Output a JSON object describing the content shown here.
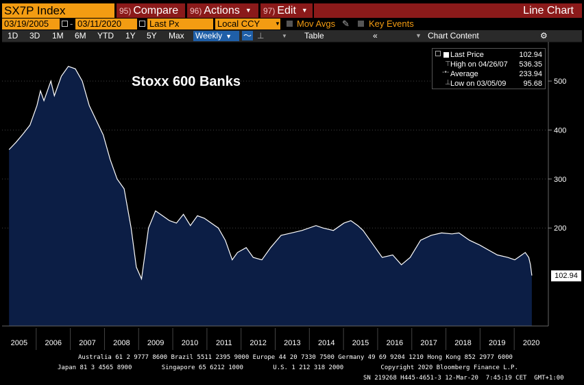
{
  "header": {
    "ticker": "SX7P Index",
    "compare_num": "95)",
    "compare": "Compare",
    "actions_num": "96)",
    "actions": "Actions",
    "edit_num": "97)",
    "edit": "Edit",
    "chart_type": "Line Chart"
  },
  "controls": {
    "start_date": "03/19/2005",
    "end_date": "03/11/2020",
    "price_field": "Last Px",
    "currency": "Local CCY",
    "mov_avgs": "Mov Avgs",
    "key_events": "Key Events"
  },
  "periods": [
    "1D",
    "3D",
    "1M",
    "6M",
    "YTD",
    "1Y",
    "5Y",
    "Max"
  ],
  "frequency": "Weekly",
  "table_label": "Table",
  "chart_content_label": "Chart Content",
  "legend": {
    "last_price_label": "Last Price",
    "last_price": "102.94",
    "high_label": "High on 04/26/07",
    "high": "536.35",
    "average_label": "Average",
    "average": "233.94",
    "low_label": "Low on 03/05/09",
    "low": "95.68"
  },
  "last_value_tag": "102.94",
  "footer": {
    "line1": "Australia 61 2 9777 8600 Brazil 5511 2395 9000 Europe 44 20 7330 7500 Germany 49 69 9204 1210 Hong Kong 852 2977 6000",
    "line2": "Japan 81 3 4565 8900        Singapore 65 6212 1000        U.S. 1 212 318 2000          Copyright 2020 Bloomberg Finance L.P.",
    "line3": "SN 219268 H445-4651-3 12-Mar-20  7:45:19 CET  GMT+1:00"
  },
  "colors": {
    "area_fill": "#0c1e45",
    "line": "#ffffff",
    "ticker_bg": "#f39c12",
    "menu_bg": "#8b1a1a",
    "frequency_bg": "#1f5fa8"
  },
  "chart_data": {
    "type": "area",
    "title": "Stoxx 600 Banks",
    "xlabel": "",
    "ylabel": "",
    "x_ticks": [
      "2005",
      "2006",
      "2007",
      "2008",
      "2009",
      "2010",
      "2011",
      "2012",
      "2013",
      "2014",
      "2015",
      "2016",
      "2017",
      "2018",
      "2019",
      "2020"
    ],
    "y_ticks": [
      200,
      300,
      400,
      500
    ],
    "ylim": [
      0,
      580
    ],
    "xlim": [
      2005.0,
      2020.25
    ],
    "series": [
      {
        "x": [
          2005.2,
          2005.4,
          2005.6,
          2005.8,
          2006.0,
          2006.1,
          2006.2,
          2006.4,
          2006.5,
          2006.7,
          2006.9,
          2007.1,
          2007.3,
          2007.5,
          2007.7,
          2007.9,
          2008.1,
          2008.3,
          2008.5,
          2008.7,
          2008.85,
          2009.0,
          2009.2,
          2009.4,
          2009.6,
          2009.8,
          2010.0,
          2010.2,
          2010.4,
          2010.6,
          2010.8,
          2011.0,
          2011.2,
          2011.4,
          2011.6,
          2011.75,
          2012.0,
          2012.2,
          2012.45,
          2012.7,
          2013.0,
          2013.3,
          2013.6,
          2014.0,
          2014.2,
          2014.5,
          2014.8,
          2015.0,
          2015.2,
          2015.35,
          2015.6,
          2015.9,
          2016.2,
          2016.45,
          2016.7,
          2017.0,
          2017.3,
          2017.6,
          2017.9,
          2018.1,
          2018.4,
          2018.7,
          2018.95,
          2019.2,
          2019.5,
          2019.7,
          2019.9,
          2020.0,
          2020.1,
          2020.15,
          2020.19
        ],
        "y": [
          360,
          375,
          392,
          410,
          450,
          480,
          460,
          500,
          470,
          510,
          530,
          525,
          500,
          450,
          420,
          390,
          340,
          300,
          280,
          200,
          120,
          96,
          200,
          235,
          225,
          215,
          210,
          228,
          205,
          225,
          220,
          210,
          200,
          175,
          135,
          150,
          160,
          140,
          135,
          160,
          185,
          190,
          195,
          205,
          200,
          195,
          210,
          215,
          205,
          195,
          170,
          140,
          145,
          125,
          140,
          175,
          185,
          190,
          188,
          190,
          175,
          165,
          155,
          145,
          140,
          135,
          145,
          150,
          140,
          125,
          102.94
        ]
      }
    ]
  }
}
